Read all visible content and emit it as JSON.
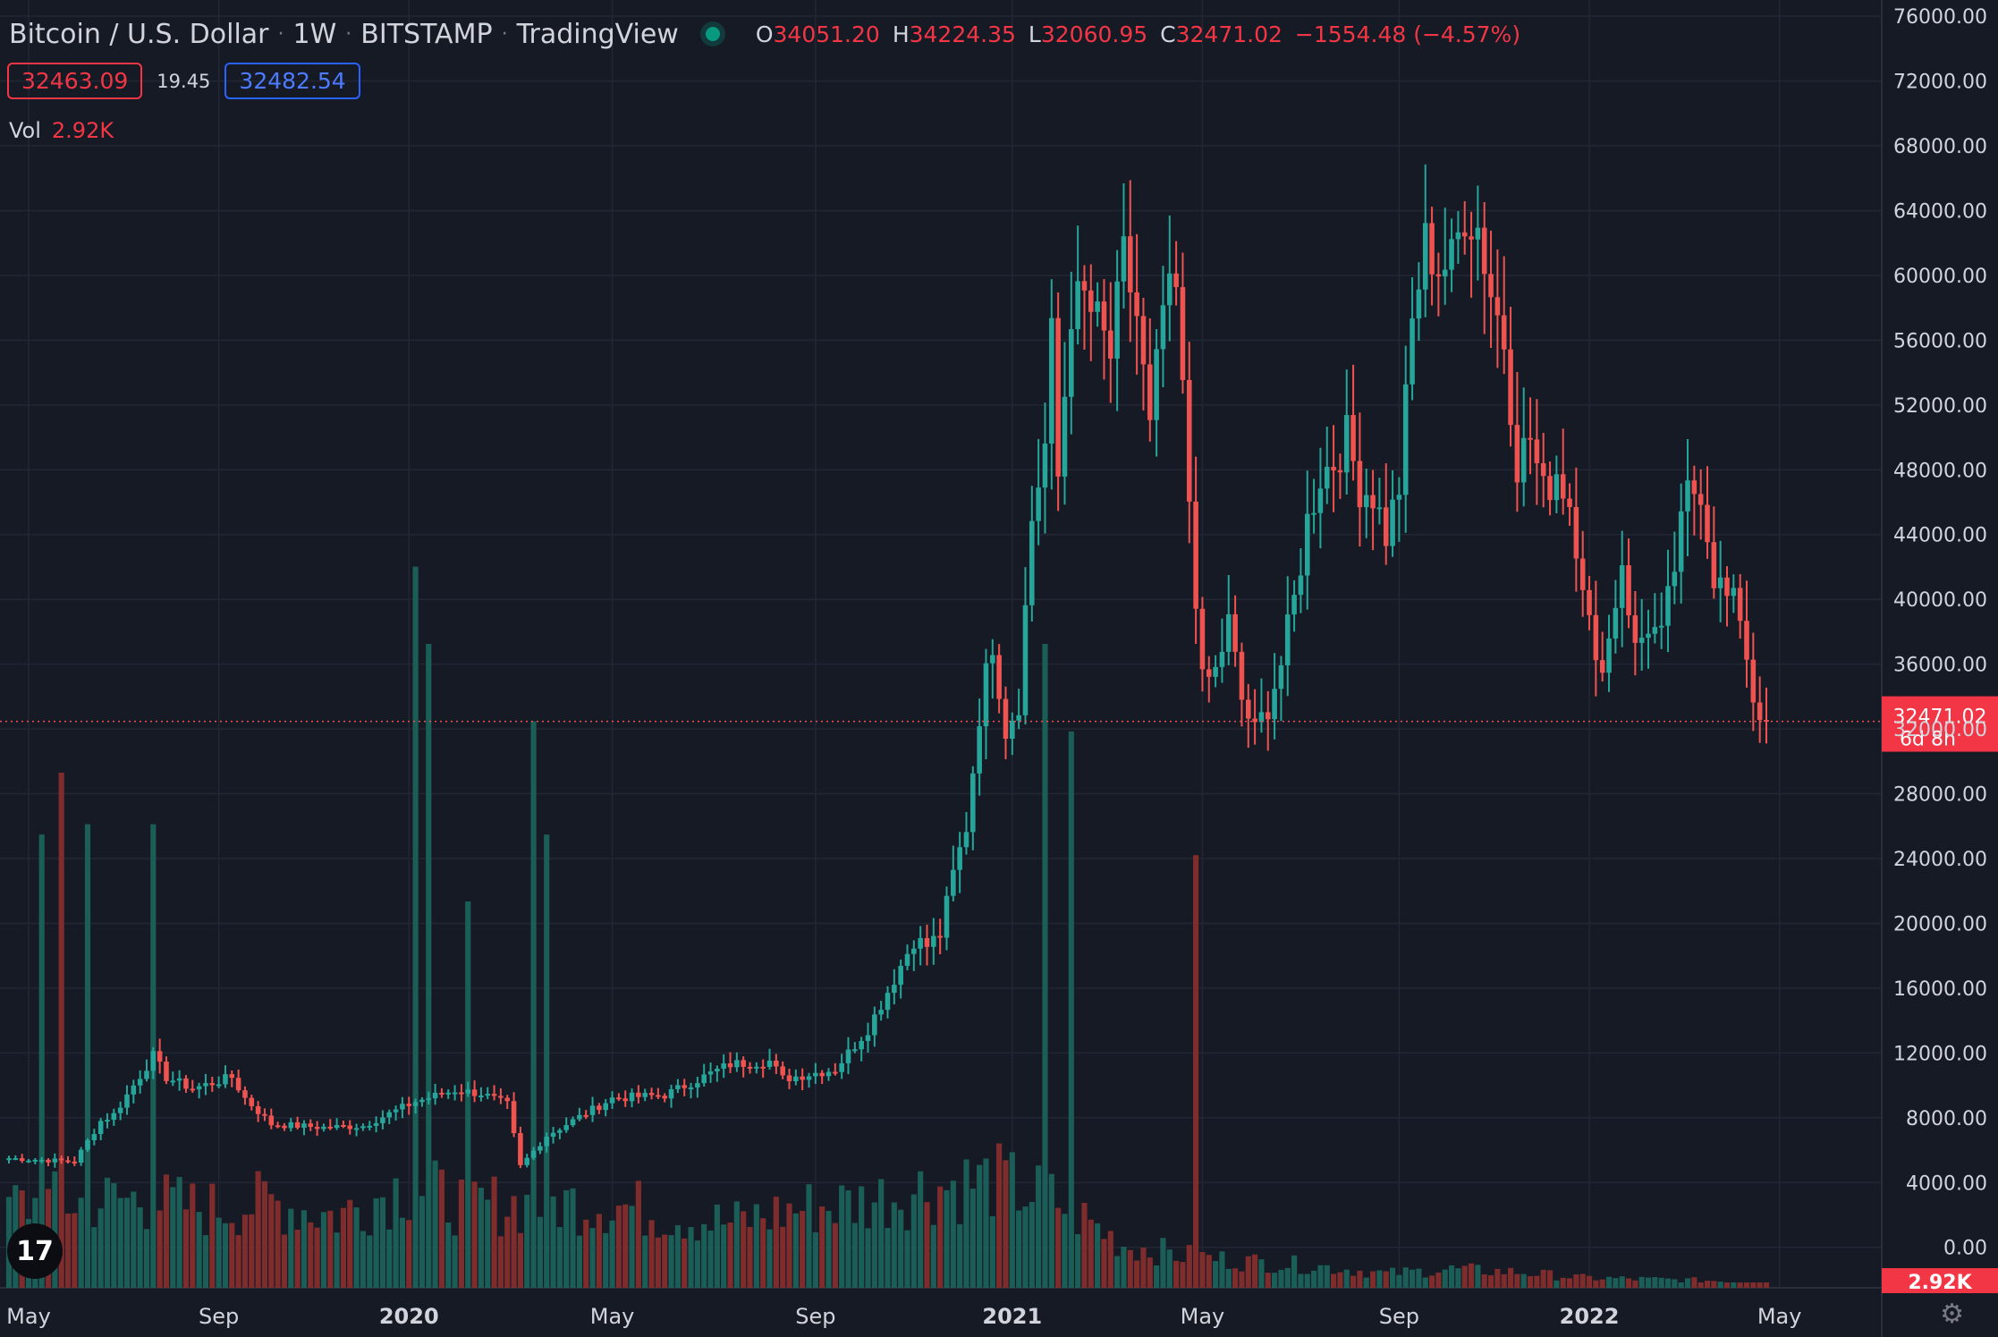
{
  "header": {
    "symbol": "Bitcoin / U.S. Dollar",
    "interval": "1W",
    "exchange": "BITSTAMP",
    "source": "TradingView",
    "ohlc": {
      "o_label": "O",
      "o": "34051.20",
      "h_label": "H",
      "h": "34224.35",
      "l_label": "L",
      "l": "32060.95",
      "c_label": "C",
      "c": "32471.02",
      "change": "−1554.48 (−4.57%)"
    }
  },
  "quote": {
    "bid": "32463.09",
    "spread": "19.45",
    "ask": "32482.54"
  },
  "volume": {
    "label": "Vol",
    "value": "2.92K"
  },
  "last_price": {
    "value": "32471.02",
    "countdown": "6d 8h"
  },
  "colors": {
    "up": "#26a69a",
    "down": "#ef5350",
    "up_volume": "#1b5e57",
    "down_volume": "#7f2c2c",
    "background": "#161a25",
    "grid": "#232735"
  },
  "icons": {
    "logo": "tradingview-logo-icon",
    "settings": "gear-icon"
  },
  "chart_data": {
    "type": "candlestick",
    "x_tick_labels": [
      "May",
      "Sep",
      "2020",
      "May",
      "Sep",
      "2021",
      "May",
      "Sep",
      "2022",
      "May"
    ],
    "y_ticks": [
      "76000.00",
      "72000.00",
      "68000.00",
      "64000.00",
      "60000.00",
      "56000.00",
      "52000.00",
      "48000.00",
      "44000.00",
      "40000.00",
      "36000.00",
      "32000.00",
      "28000.00",
      "24000.00",
      "20000.00",
      "16000.00",
      "12000.00",
      "8000.00",
      "4000.00",
      "0.00"
    ],
    "ylim": [
      -2500,
      77000
    ],
    "volume_label": "2.92K",
    "waypoints": [
      [
        0,
        5500
      ],
      [
        10,
        5300
      ],
      [
        14,
        7800
      ],
      [
        16,
        8200
      ],
      [
        22,
        11800
      ],
      [
        24,
        10500
      ],
      [
        28,
        9800
      ],
      [
        34,
        10500
      ],
      [
        36,
        9200
      ],
      [
        40,
        7600
      ],
      [
        48,
        7400
      ],
      [
        54,
        7500
      ],
      [
        62,
        9000
      ],
      [
        68,
        9700
      ],
      [
        72,
        9500
      ],
      [
        76,
        8800
      ],
      [
        78,
        5000
      ],
      [
        82,
        6900
      ],
      [
        92,
        9200
      ],
      [
        100,
        9400
      ],
      [
        110,
        11300
      ],
      [
        116,
        11500
      ],
      [
        118,
        10400
      ],
      [
        126,
        11000
      ],
      [
        131,
        13500
      ],
      [
        134,
        15800
      ],
      [
        138,
        19000
      ],
      [
        140,
        18600
      ],
      [
        142,
        19300
      ],
      [
        144,
        23000
      ],
      [
        146,
        26000
      ],
      [
        148,
        33000
      ],
      [
        150,
        37500
      ],
      [
        152,
        32000
      ],
      [
        154,
        33800
      ],
      [
        156,
        45000
      ],
      [
        158,
        49500
      ],
      [
        159,
        56000
      ],
      [
        160,
        47500
      ],
      [
        162,
        58000
      ],
      [
        164,
        58500
      ],
      [
        166,
        57000
      ],
      [
        168,
        55000
      ],
      [
        170,
        61000
      ],
      [
        172,
        57500
      ],
      [
        174,
        50200
      ],
      [
        176,
        58000
      ],
      [
        178,
        58800
      ],
      [
        180,
        46200
      ],
      [
        182,
        34700
      ],
      [
        184,
        35500
      ],
      [
        186,
        38500
      ],
      [
        188,
        33800
      ],
      [
        190,
        31700
      ],
      [
        192,
        33500
      ],
      [
        194,
        36000
      ],
      [
        196,
        39900
      ],
      [
        198,
        44800
      ],
      [
        200,
        47700
      ],
      [
        202,
        48500
      ],
      [
        204,
        50000
      ],
      [
        206,
        47000
      ],
      [
        208,
        46500
      ],
      [
        210,
        44000
      ],
      [
        212,
        47000
      ],
      [
        214,
        57000
      ],
      [
        216,
        62000
      ],
      [
        218,
        60500
      ],
      [
        220,
        60800
      ],
      [
        222,
        64000
      ],
      [
        224,
        63000
      ],
      [
        226,
        59000
      ],
      [
        228,
        56000
      ],
      [
        230,
        48500
      ],
      [
        232,
        50000
      ],
      [
        234,
        46500
      ],
      [
        236,
        48000
      ],
      [
        238,
        46000
      ],
      [
        240,
        41500
      ],
      [
        242,
        35500
      ],
      [
        244,
        37500
      ],
      [
        246,
        42500
      ],
      [
        248,
        36800
      ],
      [
        250,
        38500
      ],
      [
        252,
        37500
      ],
      [
        254,
        42000
      ],
      [
        256,
        46500
      ],
      [
        258,
        47000
      ],
      [
        260,
        41600
      ],
      [
        262,
        40000
      ],
      [
        264,
        39200
      ],
      [
        266,
        34000
      ],
      [
        268,
        32471
      ]
    ],
    "volume_spikes": [
      [
        5,
        88
      ],
      [
        8,
        100
      ],
      [
        12,
        90
      ],
      [
        22,
        90
      ],
      [
        62,
        140
      ],
      [
        64,
        125
      ],
      [
        70,
        75
      ],
      [
        80,
        110
      ],
      [
        82,
        88
      ],
      [
        158,
        125
      ],
      [
        162,
        108
      ],
      [
        181,
        84
      ]
    ],
    "volume_base": [
      [
        0,
        58
      ],
      [
        20,
        62
      ],
      [
        30,
        55
      ],
      [
        40,
        60
      ],
      [
        50,
        50
      ],
      [
        60,
        72
      ],
      [
        70,
        58
      ],
      [
        90,
        60
      ],
      [
        100,
        52
      ],
      [
        110,
        45
      ],
      [
        120,
        55
      ],
      [
        130,
        60
      ],
      [
        140,
        70
      ],
      [
        150,
        75
      ],
      [
        160,
        60
      ],
      [
        170,
        30
      ],
      [
        180,
        22
      ],
      [
        190,
        18
      ],
      [
        200,
        15
      ],
      [
        210,
        10
      ],
      [
        220,
        13
      ],
      [
        230,
        11
      ],
      [
        240,
        7
      ],
      [
        250,
        6
      ],
      [
        260,
        5
      ],
      [
        268,
        3
      ]
    ],
    "last_index": 268
  }
}
